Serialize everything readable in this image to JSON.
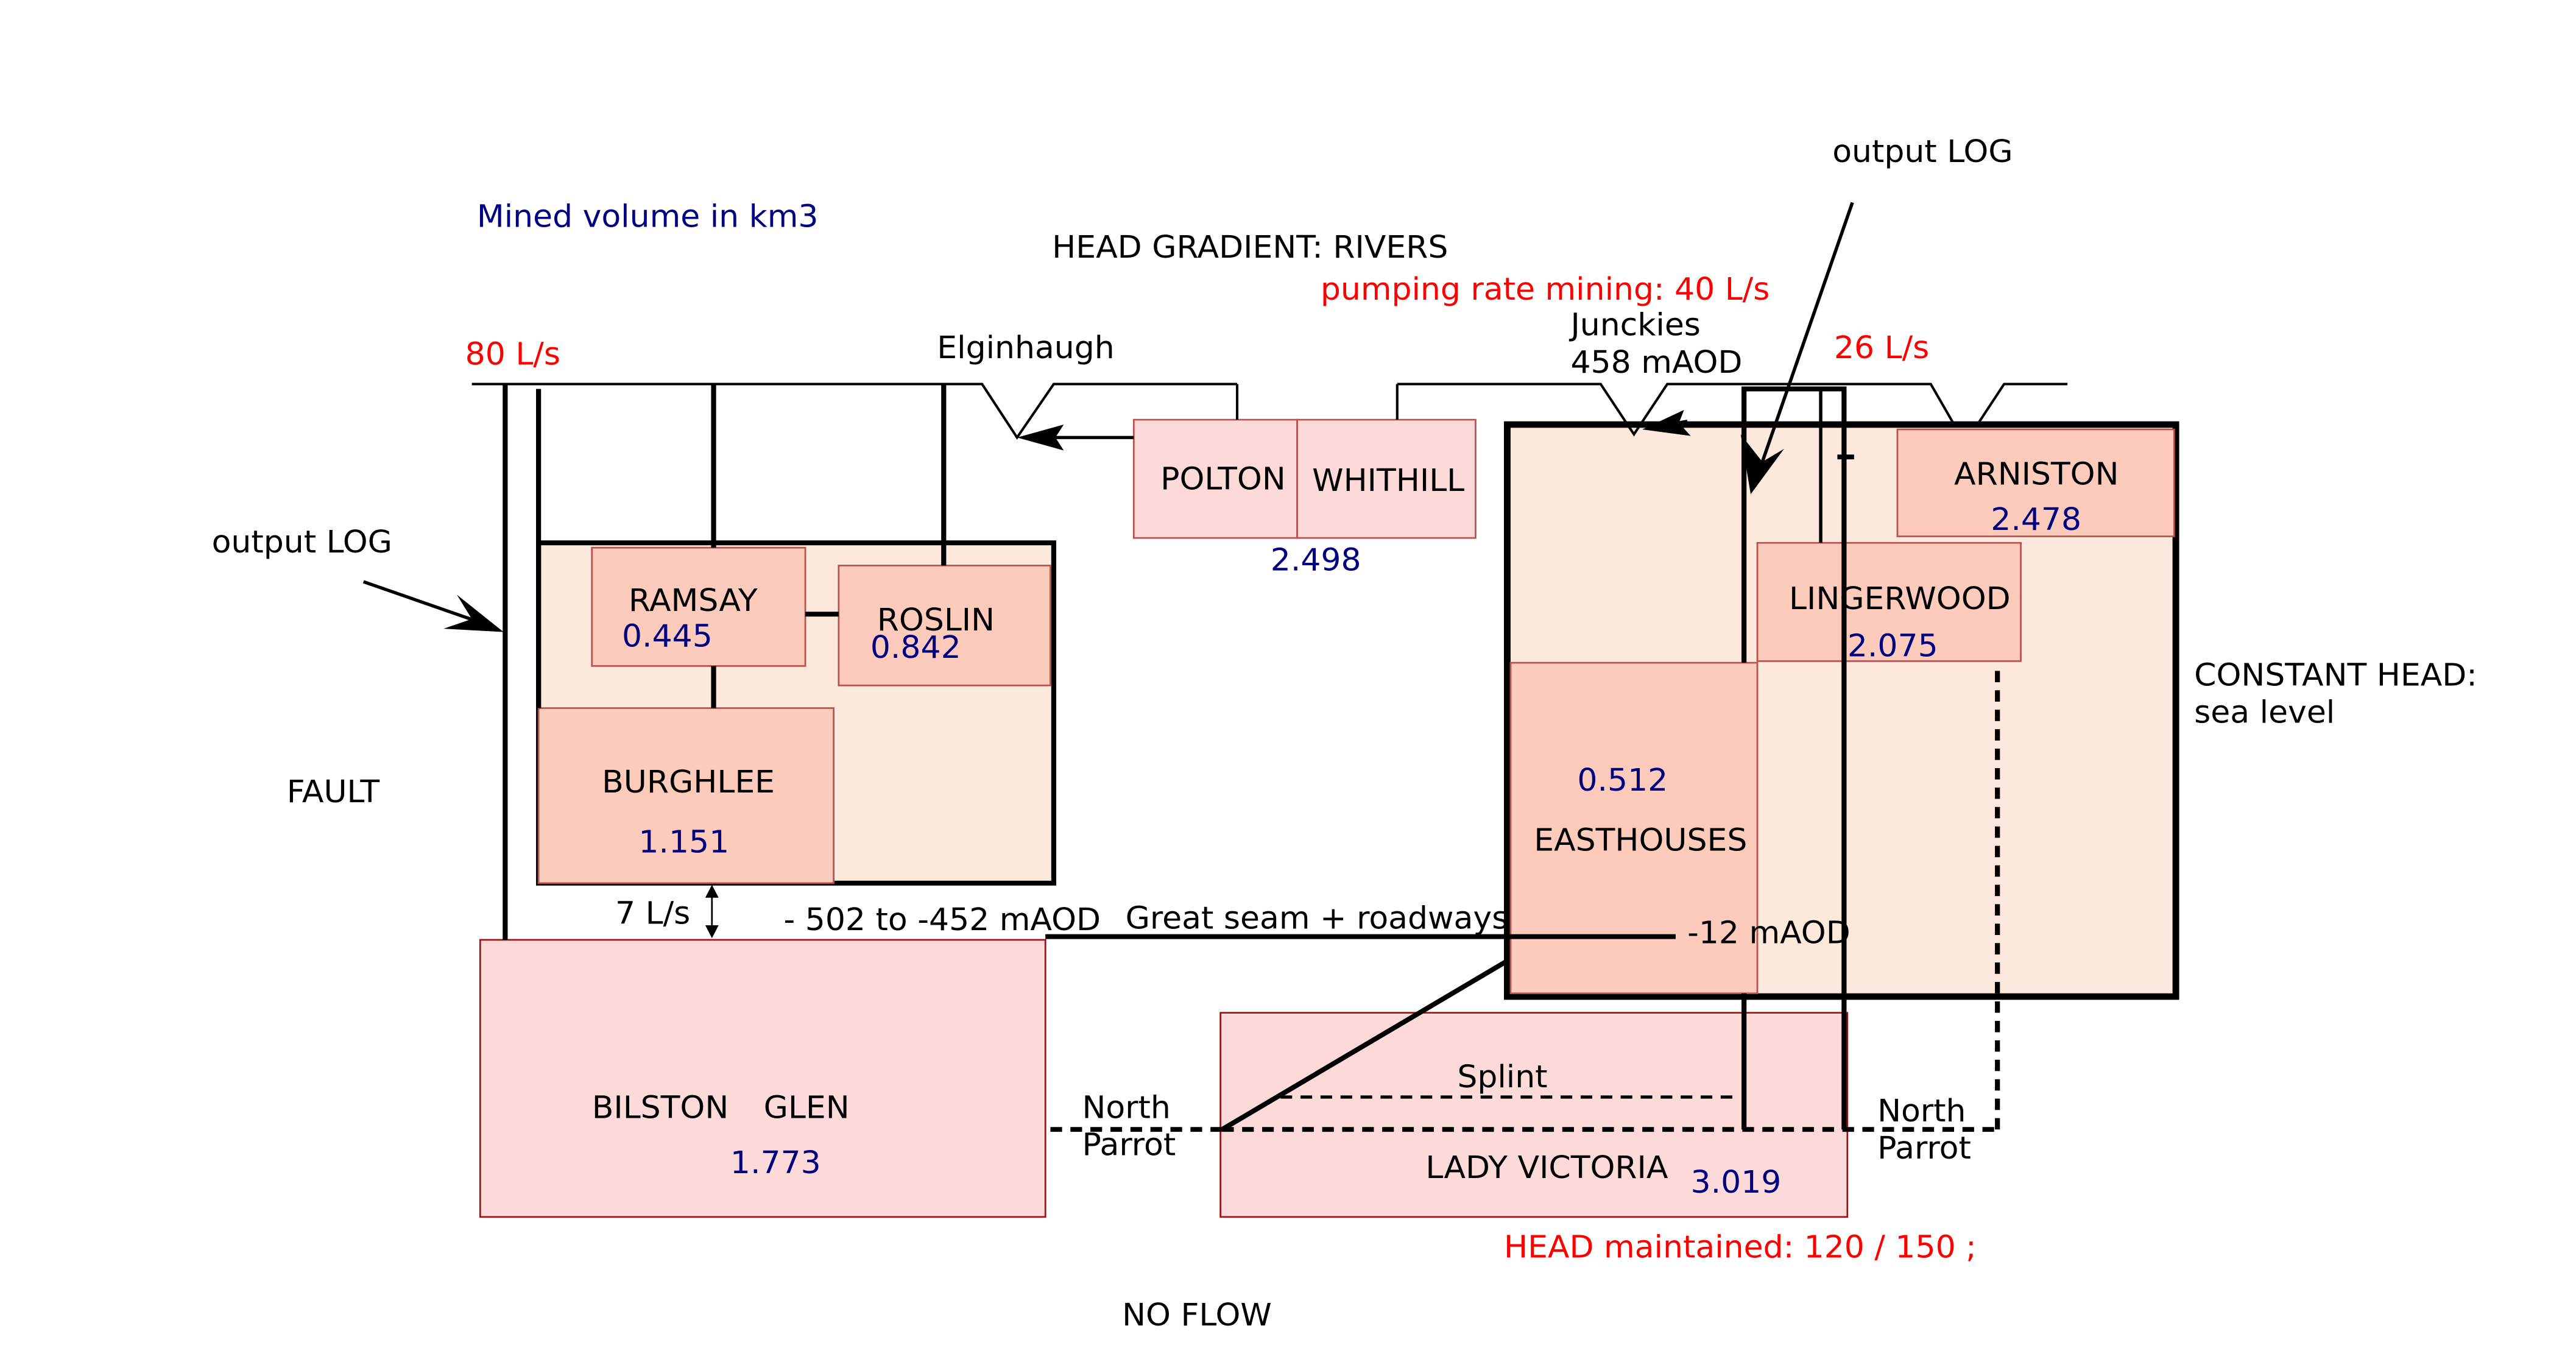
{
  "colors": {
    "ink": "#000000",
    "mine_fill": "#fde9db",
    "sub_mine_fill": "#fccbbb",
    "connected_mine_fill": "#fddada",
    "red_text": "#ff0000",
    "blue_text": "#000080"
  },
  "notes": {
    "mined_volume": "Mined volume in km3",
    "head_gradient": "HEAD GRADIENT: RIVERS",
    "pumping_rate": "pumping rate mining: 40 L/s",
    "output_log_top": "output LOG",
    "output_log_left": "output LOG",
    "fault": "FAULT",
    "constant_head_1": "CONSTANT HEAD:",
    "constant_head_2": "sea level",
    "head_maintained": "HEAD maintained: 120  / 150 ;",
    "no_flow": "NO FLOW"
  },
  "flows": {
    "left_rate": "80 L/s",
    "right_rate": "26 L/s",
    "bilston_link": "7 L/s"
  },
  "river_points": {
    "elginhaugh": "Elginhaugh",
    "junckies_name": "Junckies",
    "junckies_level": "458 mAOD"
  },
  "mines": {
    "ramsay": {
      "name": "RAMSAY",
      "volume": "0.445"
    },
    "roslin": {
      "name": "ROSLIN",
      "volume": "0.842"
    },
    "burghlee": {
      "name": "BURGHLEE",
      "volume": "1.151"
    },
    "polton": {
      "name": "POLTON"
    },
    "whithill": {
      "name": "WHITHILL"
    },
    "polton_whithill_volume": "2.498",
    "arniston": {
      "name": "ARNISTON",
      "volume": "2.478"
    },
    "lingerwood": {
      "name": "LINGERWOOD",
      "volume": "2.075"
    },
    "easthouses": {
      "name": "EASTHOUSES",
      "volume": "0.512"
    },
    "bilston": {
      "name_1": "BILSTON",
      "name_2": "GLEN",
      "volume": "1.773"
    },
    "lady_victoria": {
      "name": "LADY VICTORIA",
      "volume": "3.019"
    }
  },
  "seams": {
    "depth_range": "- 502 to -452 mAOD",
    "great_seam": "Great seam + roadways",
    "level_easthouses": "-12 mAOD",
    "splint": "Splint",
    "north_parrot_1": "North",
    "north_parrot_2": "Parrot"
  }
}
